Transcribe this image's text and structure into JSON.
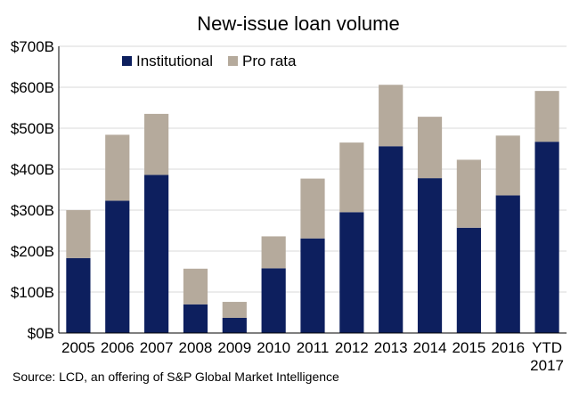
{
  "chart_data": {
    "type": "bar",
    "stacked": true,
    "title": "New-issue loan volume",
    "categories": [
      "2005",
      "2006",
      "2007",
      "2008",
      "2009",
      "2010",
      "2011",
      "2012",
      "2013",
      "2014",
      "2015",
      "2016",
      "YTD 2017"
    ],
    "series": [
      {
        "name": "Institutional",
        "color": "#0d1f5e",
        "values": [
          183,
          323,
          386,
          70,
          37,
          158,
          231,
          295,
          456,
          378,
          257,
          336,
          467
        ]
      },
      {
        "name": "Pro rata",
        "color": "#b5aa9c",
        "values": [
          117,
          161,
          149,
          87,
          39,
          78,
          146,
          170,
          150,
          150,
          166,
          146,
          124
        ]
      }
    ],
    "yticks": [
      "$0B",
      "$100B",
      "$200B",
      "$300B",
      "$400B",
      "$500B",
      "$600B",
      "$700B"
    ],
    "ylim": [
      0,
      700
    ],
    "grid": true,
    "legend_position": "top-left",
    "source": "Source: LCD, an offering of S&P Global Market Intelligence"
  }
}
